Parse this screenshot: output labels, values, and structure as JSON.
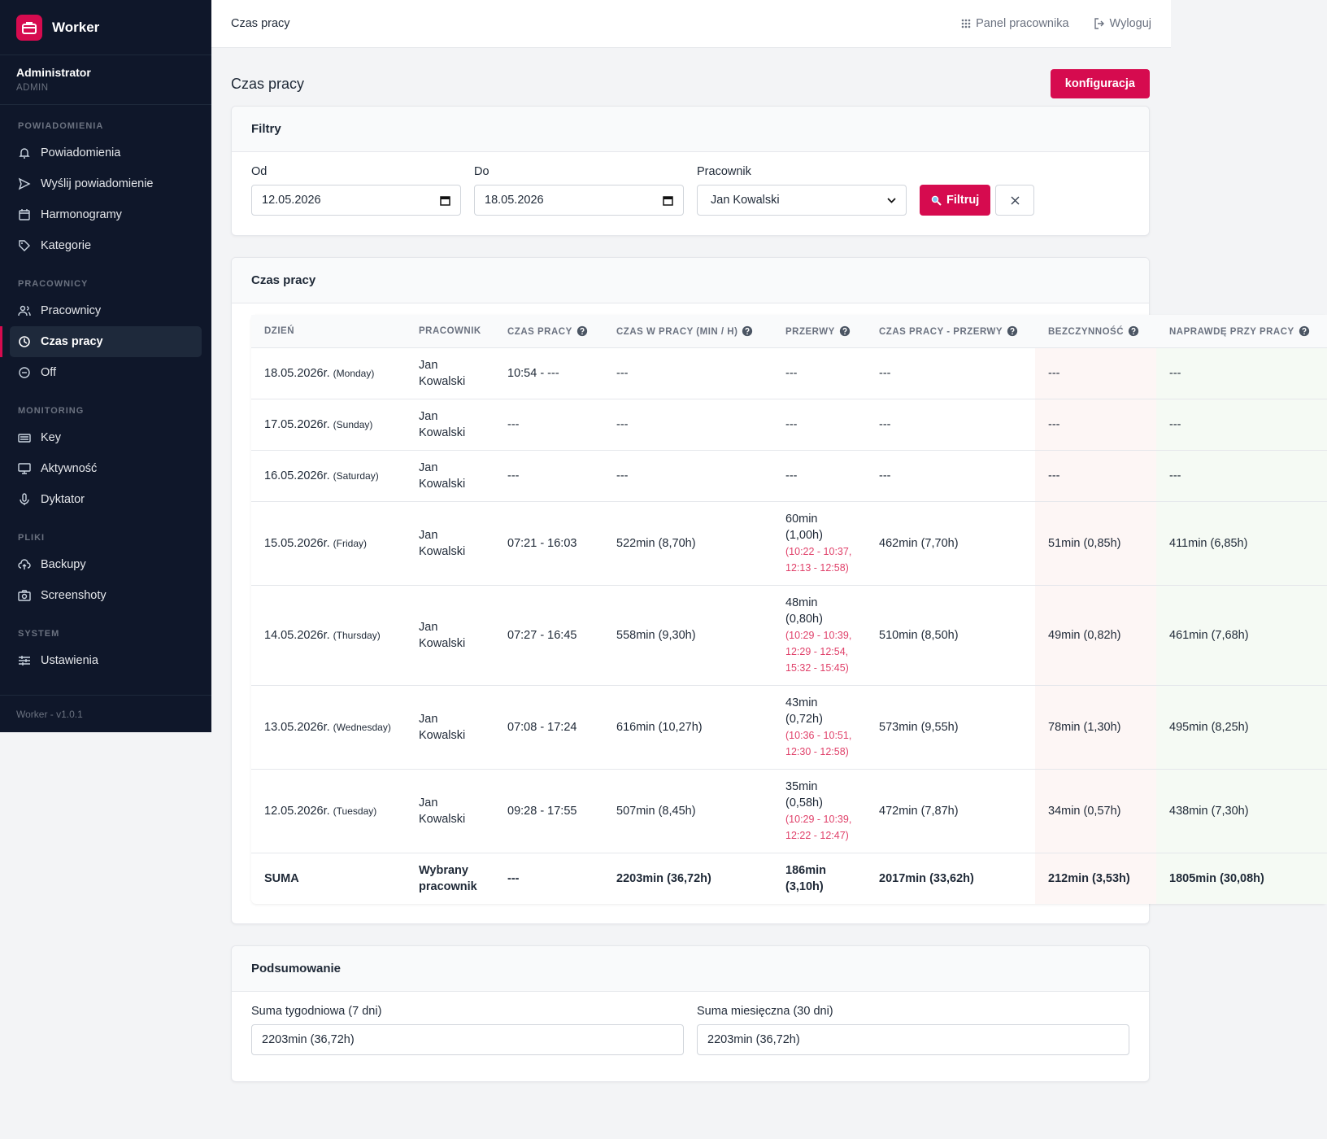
{
  "sidebar": {
    "brand": "Worker",
    "user": {
      "name": "Administrator",
      "role": "ADMIN"
    },
    "sections": [
      {
        "title": "POWIADOMIENIA",
        "items": [
          {
            "label": "Powiadomienia"
          },
          {
            "label": "Wyślij powiadomienie"
          },
          {
            "label": "Harmonogramy"
          },
          {
            "label": "Kategorie"
          }
        ]
      },
      {
        "title": "PRACOWNICY",
        "items": [
          {
            "label": "Pracownicy"
          },
          {
            "label": "Czas pracy",
            "active": true
          },
          {
            "label": "Off"
          }
        ]
      },
      {
        "title": "MONITORING",
        "items": [
          {
            "label": "Key"
          },
          {
            "label": "Aktywność"
          },
          {
            "label": "Dyktator"
          }
        ]
      },
      {
        "title": "PLIKI",
        "items": [
          {
            "label": "Backupy"
          },
          {
            "label": "Screenshoty"
          }
        ]
      },
      {
        "title": "SYSTEM",
        "items": [
          {
            "label": "Ustawienia"
          }
        ]
      }
    ],
    "footer": "Worker - v1.0.1"
  },
  "topbar": {
    "breadcrumb": "Czas pracy",
    "links": [
      "Panel pracownika",
      "Wyloguj"
    ]
  },
  "page": {
    "title": "Czas pracy",
    "button": "konfiguracja"
  },
  "filters": {
    "title": "Filtry",
    "from": {
      "label": "Od",
      "value": "12.05.2026"
    },
    "to": {
      "label": "Do",
      "value": "18.05.2026"
    },
    "employee": {
      "label": "Pracownik",
      "value": "Jan Kowalski"
    },
    "button": "Filtruj"
  },
  "table": {
    "title": "Czas pracy",
    "headers": [
      "DZIEŃ",
      "PRACOWNIK",
      "CZAS PRACY",
      "CZAS W PRACY (MIN / H)",
      "PRZERWY",
      "CZAS PRACY - PRZERWY",
      "BEZCZYNNOŚĆ",
      "NAPRAWDĘ PRZY PRACY"
    ],
    "rows": [
      {
        "day": "18.05.2026r.",
        "weekday": "(Monday)",
        "employee": "Jan Kowalski",
        "work_time": "10:54 - ---",
        "time_at_work": "---",
        "breaks": "---",
        "net_time": "---",
        "idle": "---",
        "active_time": "---"
      },
      {
        "day": "17.05.2026r.",
        "weekday": "(Sunday)",
        "employee": "Jan Kowalski",
        "work_time": "---",
        "time_at_work": "---",
        "breaks": "---",
        "net_time": "---",
        "idle": "---",
        "active_time": "---"
      },
      {
        "day": "16.05.2026r.",
        "weekday": "(Saturday)",
        "employee": "Jan Kowalski",
        "work_time": "---",
        "time_at_work": "---",
        "breaks": "---",
        "net_time": "---",
        "idle": "---",
        "active_time": "---"
      },
      {
        "day": "15.05.2026r.",
        "weekday": "(Friday)",
        "employee": "Jan Kowalski",
        "work_time": "07:21 - 16:03",
        "time_at_work": "522min (8,70h)",
        "breaks": "60min (1,00h)",
        "break_details": "(10:22 - 10:37, 12:13 - 12:58)",
        "net_time": "462min (7,70h)",
        "idle": "51min (0,85h)",
        "active_time": "411min (6,85h)"
      },
      {
        "day": "14.05.2026r.",
        "weekday": "(Thursday)",
        "employee": "Jan Kowalski",
        "work_time": "07:27 - 16:45",
        "time_at_work": "558min (9,30h)",
        "breaks": "48min (0,80h)",
        "break_details": "(10:29 - 10:39, 12:29 - 12:54, 15:32 - 15:45)",
        "net_time": "510min (8,50h)",
        "idle": "49min (0,82h)",
        "active_time": "461min (7,68h)"
      },
      {
        "day": "13.05.2026r.",
        "weekday": "(Wednesday)",
        "employee": "Jan Kowalski",
        "work_time": "07:08 - 17:24",
        "time_at_work": "616min (10,27h)",
        "breaks": "43min (0,72h)",
        "break_details": "(10:36 - 10:51, 12:30 - 12:58)",
        "net_time": "573min (9,55h)",
        "idle": "78min (1,30h)",
        "active_time": "495min (8,25h)"
      },
      {
        "day": "12.05.2026r.",
        "weekday": "(Tuesday)",
        "employee": "Jan Kowalski",
        "work_time": "09:28 - 17:55",
        "time_at_work": "507min (8,45h)",
        "breaks": "35min (0,58h)",
        "break_details": "(10:29 - 10:39, 12:22 - 12:47)",
        "net_time": "472min (7,87h)",
        "idle": "34min (0,57h)",
        "active_time": "438min (7,30h)"
      }
    ],
    "sum": {
      "label": "SUMA",
      "employee": "Wybrany pracownik",
      "work_time": "---",
      "time_at_work": "2203min (36,72h)",
      "breaks": "186min (3,10h)",
      "net_time": "2017min (33,62h)",
      "idle": "212min (3,53h)",
      "active_time": "1805min (30,08h)"
    }
  },
  "summary": {
    "title": "Podsumowanie",
    "weekly": {
      "label": "Suma tygodniowa (7 dni)",
      "value": "2203min (36,72h)"
    },
    "monthly": {
      "label": "Suma miesięczna (30 dni)",
      "value": "2203min (36,72h)"
    }
  }
}
